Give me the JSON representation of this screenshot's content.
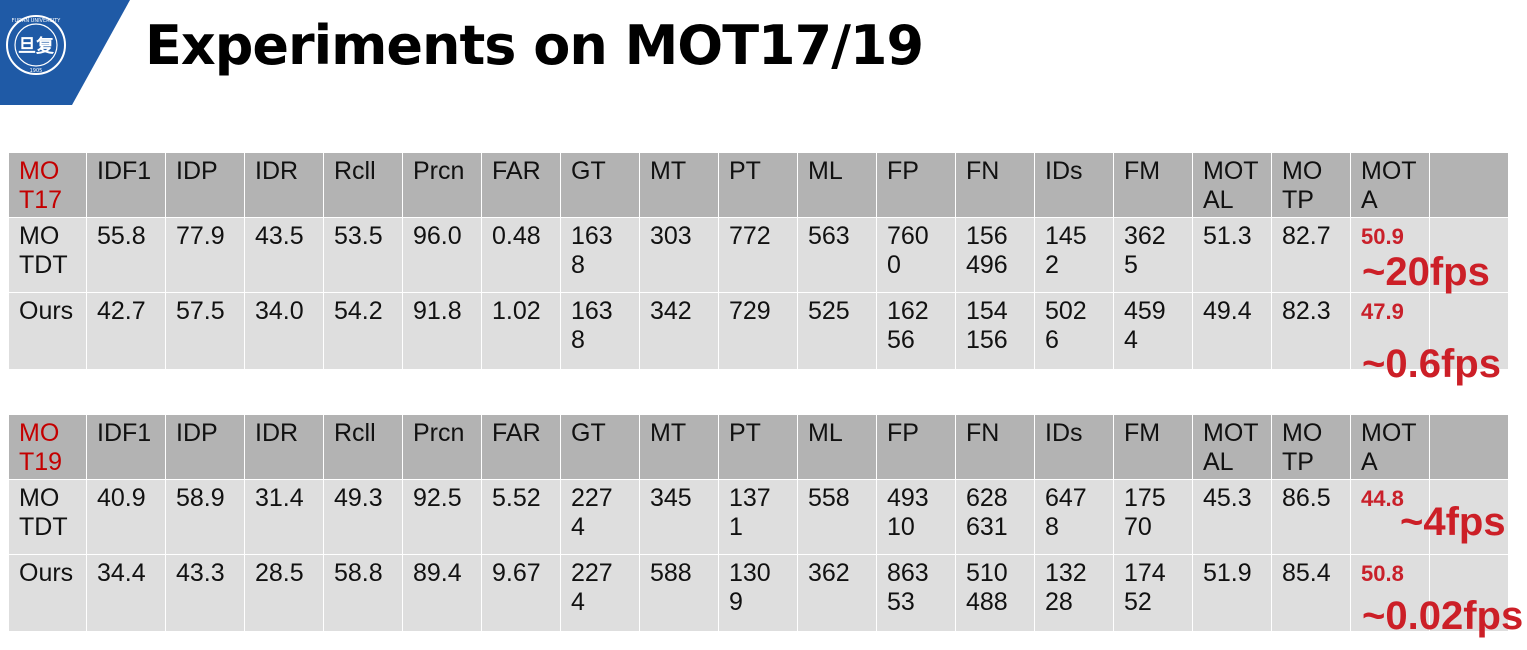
{
  "title": "Experiments on MOT17/19",
  "logo": {
    "text": "FUDAN UNIVERSITY",
    "year": "1905",
    "seal_glyph": "旦复"
  },
  "colors": {
    "brand_blue": "#1f5aa6",
    "accent_red": "#c9202a",
    "header_gray": "#b3b3b3",
    "row_gray": "#dedede"
  },
  "columns": [
    "IDF1",
    "IDP",
    "IDR",
    "Rcll",
    "Prcn",
    "FAR",
    "GT",
    "MT",
    "PT",
    "ML",
    "FP",
    "FN",
    "IDs",
    "FM",
    "MOTAL",
    "MOTP",
    "MOTA"
  ],
  "columns_display": [
    "IDF1",
    "IDP",
    "IDR",
    "Rcll",
    "Prcn",
    "FAR",
    "GT",
    "MT",
    "PT",
    "ML",
    "FP",
    "FN",
    "IDs",
    "FM",
    "MOT AL",
    "MO TP",
    "MOT A"
  ],
  "tables": [
    {
      "dataset": "MO T17",
      "rows": [
        {
          "method": "MO TDT",
          "values": [
            "55.8",
            "77.9",
            "43.5",
            "53.5",
            "96.0",
            "0.48",
            "163 8",
            "303",
            "772",
            "563",
            "760 0",
            "156 496",
            "145 2",
            "362 5",
            "51.3",
            "82.7",
            "50.9"
          ],
          "speed": "~20fps"
        },
        {
          "method": "Ours",
          "values": [
            "42.7",
            "57.5",
            "34.0",
            "54.2",
            "91.8",
            "1.02",
            "163 8",
            "342",
            "729",
            "525",
            "162 56",
            "154 156",
            "502 6",
            "459 4",
            "49.4",
            "82.3",
            "47.9"
          ],
          "speed": "~0.6fps"
        }
      ]
    },
    {
      "dataset": "MO T19",
      "rows": [
        {
          "method": "MO TDT",
          "values": [
            "40.9",
            "58.9",
            "31.4",
            "49.3",
            "92.5",
            "5.52",
            "227 4",
            "345",
            "137 1",
            "558",
            "493 10",
            "628 631",
            "647 8",
            "175 70",
            "45.3",
            "86.5",
            "44.8"
          ],
          "speed": "~4fps"
        },
        {
          "method": "Ours",
          "values": [
            "34.4",
            "43.3",
            "28.5",
            "58.8",
            "89.4",
            "9.67",
            "227 4",
            "588",
            "130 9",
            "362",
            "863 53",
            "510 488",
            "132 28",
            "174 52",
            "51.9",
            "85.4",
            "50.8"
          ],
          "speed": "~0.02fps"
        }
      ]
    }
  ]
}
